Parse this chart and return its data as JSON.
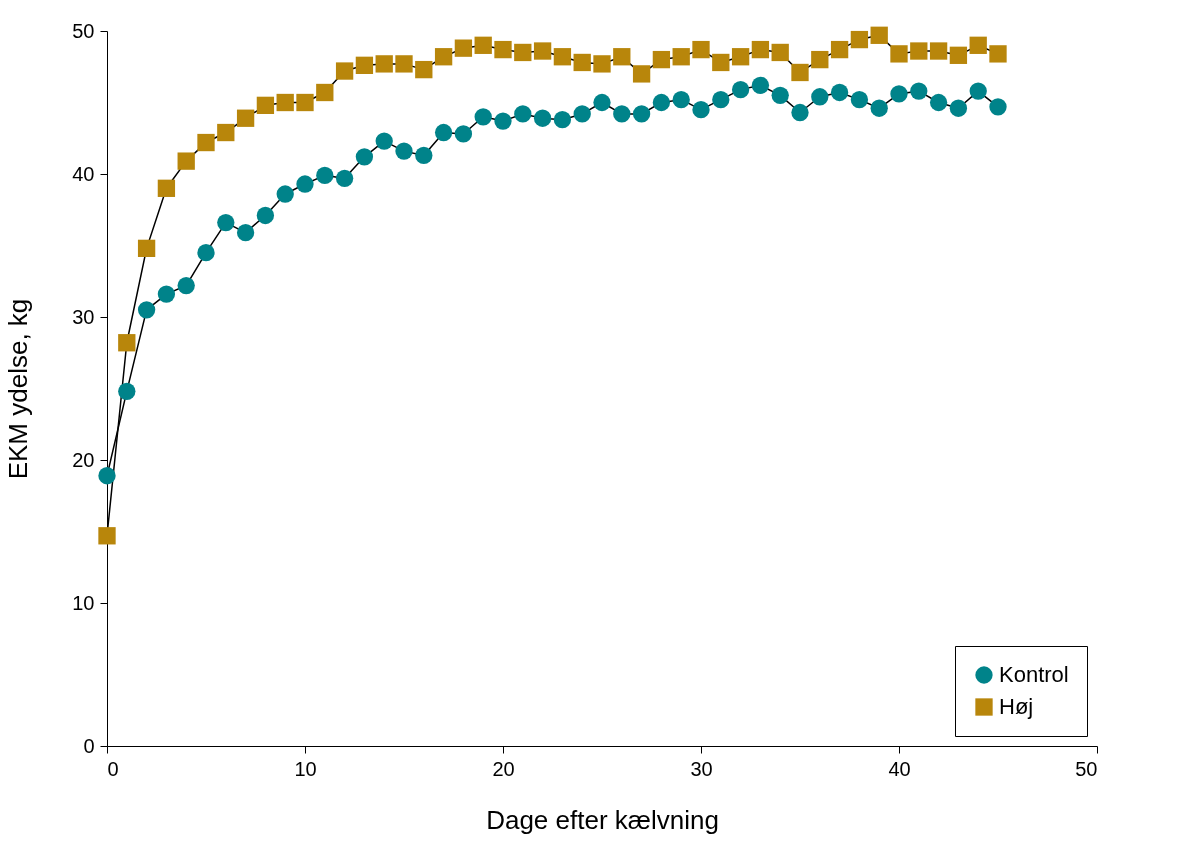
{
  "chart_data": {
    "type": "line",
    "xlabel": "Dage efter kælvning",
    "ylabel": "EKM ydelse, kg",
    "xlim": [
      0,
      50
    ],
    "xticks": [
      0,
      10,
      20,
      30,
      40,
      50
    ],
    "ylim": [
      0,
      50
    ],
    "yticks": [
      0,
      10,
      20,
      30,
      40,
      50
    ],
    "grid": false,
    "legend": "bottom right",
    "x": [
      0,
      1,
      2,
      3,
      4,
      5,
      6,
      7,
      8,
      9,
      10,
      11,
      12,
      13,
      14,
      15,
      16,
      17,
      18,
      19,
      20,
      21,
      22,
      23,
      24,
      25,
      26,
      27,
      28,
      29,
      30,
      31,
      32,
      33,
      34,
      35,
      36,
      37,
      38,
      39,
      40,
      41,
      42,
      43,
      44,
      45
    ],
    "series": [
      {
        "name": "Kontrol",
        "color": "#00838a",
        "marker": "circle",
        "values": [
          18.9,
          24.8,
          30.5,
          31.6,
          32.2,
          34.5,
          36.6,
          35.9,
          37.1,
          38.6,
          39.3,
          39.9,
          39.7,
          41.2,
          42.3,
          41.6,
          41.3,
          42.9,
          42.8,
          44.0,
          43.7,
          44.2,
          43.9,
          43.8,
          44.2,
          45.0,
          44.2,
          44.2,
          45.0,
          45.2,
          44.5,
          45.2,
          45.9,
          46.2,
          45.5,
          44.3,
          45.4,
          45.7,
          45.2,
          44.6,
          45.6,
          45.8,
          45.0,
          44.6,
          45.8,
          44.7
        ]
      },
      {
        "name": "Høj",
        "color": "#b8860b",
        "marker": "square",
        "values": [
          14.7,
          28.2,
          34.8,
          39.0,
          40.9,
          42.2,
          42.9,
          43.9,
          44.8,
          45.0,
          45.0,
          45.7,
          47.2,
          47.6,
          47.7,
          47.7,
          47.3,
          48.2,
          48.8,
          49.0,
          48.7,
          48.5,
          48.6,
          48.2,
          47.8,
          47.7,
          48.2,
          47.0,
          48.0,
          48.2,
          48.7,
          47.8,
          48.2,
          48.7,
          48.5,
          47.1,
          48.0,
          48.7,
          49.4,
          49.7,
          48.4,
          48.6,
          48.6,
          48.3,
          49.0,
          48.4
        ]
      }
    ]
  }
}
